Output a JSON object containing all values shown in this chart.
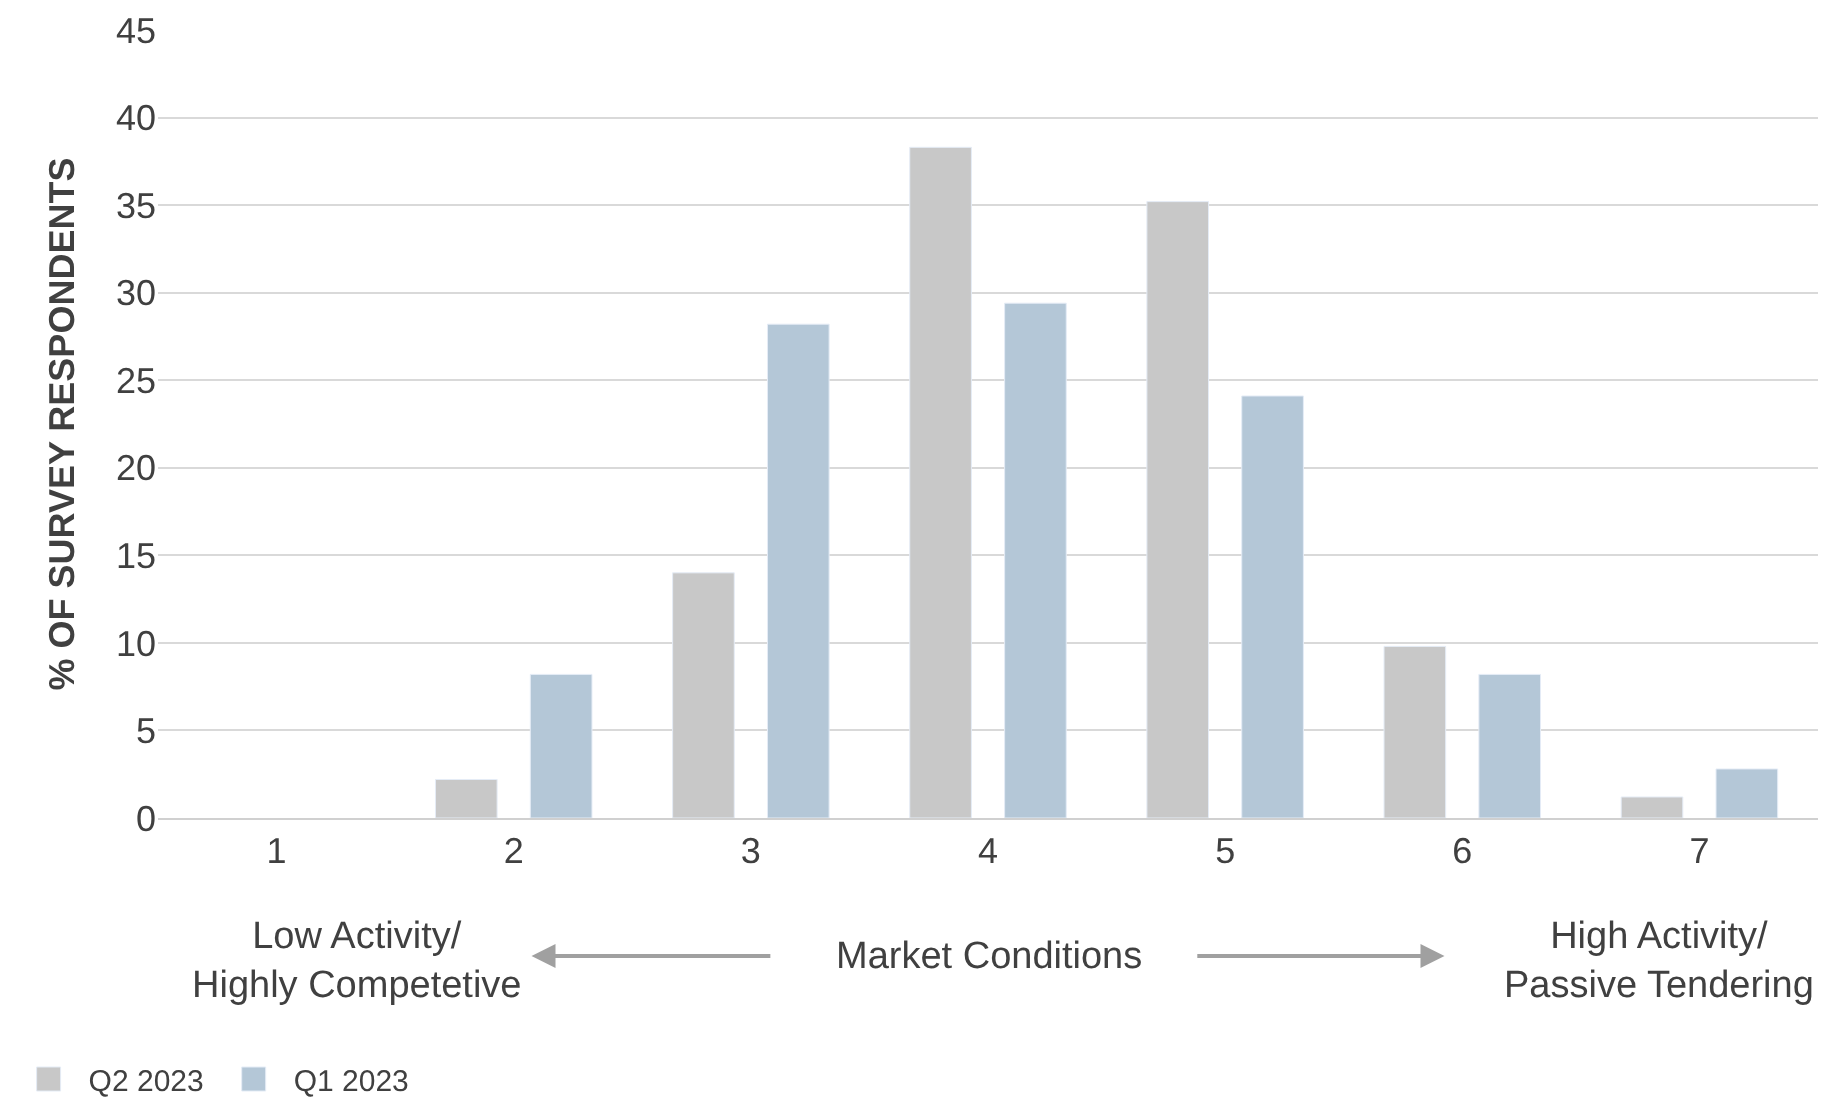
{
  "chart_data": {
    "type": "bar",
    "categories": [
      "1",
      "2",
      "3",
      "4",
      "5",
      "6",
      "7"
    ],
    "series": [
      {
        "name": "Q2 2023",
        "color": "#c8c8c8",
        "values": [
          null,
          2.2,
          14,
          38.3,
          35.2,
          9.8,
          1.2
        ]
      },
      {
        "name": "Q1 2023",
        "color": "#b4c7d7",
        "values": [
          null,
          8.2,
          28.2,
          29.4,
          24.1,
          8.2,
          2.8
        ]
      }
    ],
    "ylabel": "% OF SURVEY RESPONDENTS",
    "ylim": [
      0,
      45
    ],
    "yticks": [
      0,
      5,
      10,
      15,
      20,
      25,
      30,
      35,
      40,
      45
    ],
    "grid": "y",
    "legend": "bottom left",
    "annotations": [
      "Low Activity/\nHighly Competetive",
      "Market Conditions",
      "High Activity/\nPassive Tendering"
    ]
  }
}
